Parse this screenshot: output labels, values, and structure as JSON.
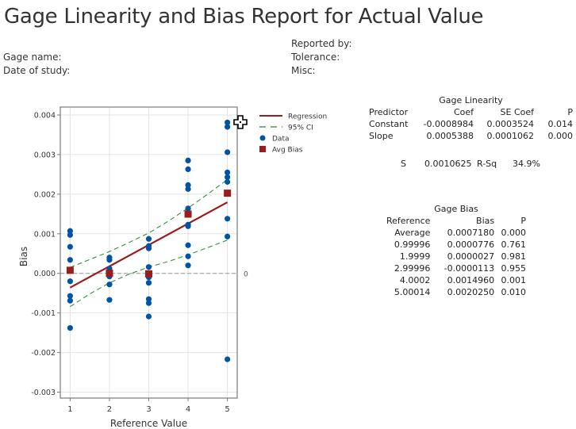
{
  "report": {
    "title": "Gage Linearity and Bias Report for Actual Value",
    "fields_left": [
      "Gage name:",
      "Date of study:"
    ],
    "fields_right": [
      "Reported by:",
      "Tolerance:",
      "Misc:"
    ]
  },
  "chart_data": {
    "type": "scatter",
    "title": "",
    "xlabel": "Reference Value",
    "ylabel": "Bias",
    "xlim": [
      0.75,
      5.25
    ],
    "ylim": [
      -0.00315,
      0.0042
    ],
    "x_ticks": [
      "1",
      "2",
      "3",
      "4",
      "5"
    ],
    "y_ticks": [
      "-0.003",
      "-0.002",
      "-0.001",
      "0.000",
      "0.001",
      "0.002",
      "0.003",
      "0.004"
    ],
    "y_tick_values": [
      -0.003,
      -0.002,
      -0.001,
      0.0,
      0.001,
      0.002,
      0.003,
      0.004
    ],
    "grid": true,
    "reference_line": {
      "y": 0,
      "label": "0"
    },
    "legend": {
      "position": "right",
      "entries": [
        {
          "name": "Regression",
          "style": "solid-line",
          "color": "#9b1c1c"
        },
        {
          "name": "95% CI",
          "style": "dashed-line",
          "color": "#1e8c2c"
        },
        {
          "name": "Data",
          "style": "circle",
          "color": "#0054a6"
        },
        {
          "name": "Avg Bias",
          "style": "square",
          "color": "#9b1c1c"
        }
      ]
    },
    "regression": {
      "intercept": -0.0008984,
      "slope": 0.0005388,
      "x_range": [
        1,
        5
      ]
    },
    "ci95": {
      "x": [
        1,
        1.5,
        2,
        2.5,
        3,
        3.5,
        4,
        4.5,
        5
      ],
      "upper": [
        0.00015,
        0.00035,
        0.00055,
        0.00078,
        0.00102,
        0.00132,
        0.00165,
        0.002,
        0.00237
      ],
      "lower": [
        -0.00084,
        -0.00052,
        -0.00024,
        -2e-05,
        0.00016,
        0.0003,
        0.00047,
        0.00065,
        0.00084
      ]
    },
    "series": [
      {
        "name": "Data",
        "points": [
          [
            1,
            0.00107
          ],
          [
            1,
            0.00097
          ],
          [
            1,
            0.00067
          ],
          [
            1,
            0.00034
          ],
          [
            1,
            -0.0002
          ],
          [
            1,
            -0.00057
          ],
          [
            1,
            -0.00069
          ],
          [
            1,
            -0.00138
          ],
          [
            2,
            0.0004
          ],
          [
            2,
            0.00034
          ],
          [
            2,
            0.00012
          ],
          [
            2,
            0.0
          ],
          [
            2,
            -8e-05
          ],
          [
            2,
            -0.00028
          ],
          [
            2,
            -0.00067
          ],
          [
            3,
            0.00087
          ],
          [
            3,
            0.00069
          ],
          [
            3,
            0.00063
          ],
          [
            3,
            0.00016
          ],
          [
            3,
            -0.0001
          ],
          [
            3,
            -0.00024
          ],
          [
            3,
            -0.00065
          ],
          [
            3,
            -0.00075
          ],
          [
            3,
            -0.00109
          ],
          [
            4,
            0.00285
          ],
          [
            4,
            0.00263
          ],
          [
            4,
            0.00223
          ],
          [
            4,
            0.00213
          ],
          [
            4,
            0.00164
          ],
          [
            4,
            0.00123
          ],
          [
            4,
            0.00119
          ],
          [
            4,
            0.00071
          ],
          [
            4,
            0.00043
          ],
          [
            4,
            0.0002
          ],
          [
            5,
            0.00381
          ],
          [
            5,
            0.0037
          ],
          [
            5,
            0.00306
          ],
          [
            5,
            0.00255
          ],
          [
            5,
            0.00243
          ],
          [
            5,
            0.00231
          ],
          [
            5,
            0.00138
          ],
          [
            5,
            0.00093
          ],
          [
            5,
            -0.00217
          ]
        ]
      },
      {
        "name": "Avg Bias",
        "points": [
          [
            1,
            7.76e-05
          ],
          [
            2,
            2.7e-06
          ],
          [
            3,
            -1.13e-05
          ],
          [
            4,
            0.001496
          ],
          [
            5,
            0.002025
          ]
        ]
      }
    ]
  },
  "gage_linearity": {
    "title": "Gage Linearity",
    "headers": [
      "Predictor",
      "Coef",
      "SE Coef",
      "P"
    ],
    "rows": [
      [
        "Constant",
        "-0.0008984",
        "0.0003524",
        "0.014"
      ],
      [
        "Slope",
        "0.0005388",
        "0.0001062",
        "0.000"
      ]
    ],
    "s_label": "S",
    "s_value": "0.0010625",
    "rsq_label": "R-Sq",
    "rsq_value": "34.9%"
  },
  "gage_bias": {
    "title": "Gage Bias",
    "headers": [
      "Reference",
      "Bias",
      "P"
    ],
    "rows": [
      [
        "Average",
        "0.0007180",
        "0.000"
      ],
      [
        "0.99996",
        "0.0000776",
        "0.761"
      ],
      [
        "1.9999",
        "0.0000027",
        "0.981"
      ],
      [
        "2.99996",
        "-0.0000113",
        "0.955"
      ],
      [
        "4.0002",
        "0.0014960",
        "0.001"
      ],
      [
        "5.00014",
        "0.0020250",
        "0.010"
      ]
    ]
  },
  "colors": {
    "data": "#0054a6",
    "regression": "#9b1c1c",
    "ci": "#1e8c2c",
    "grid": "#e3e3e3",
    "axis": "#7a7a7a",
    "refline": "#9a9a9a"
  }
}
